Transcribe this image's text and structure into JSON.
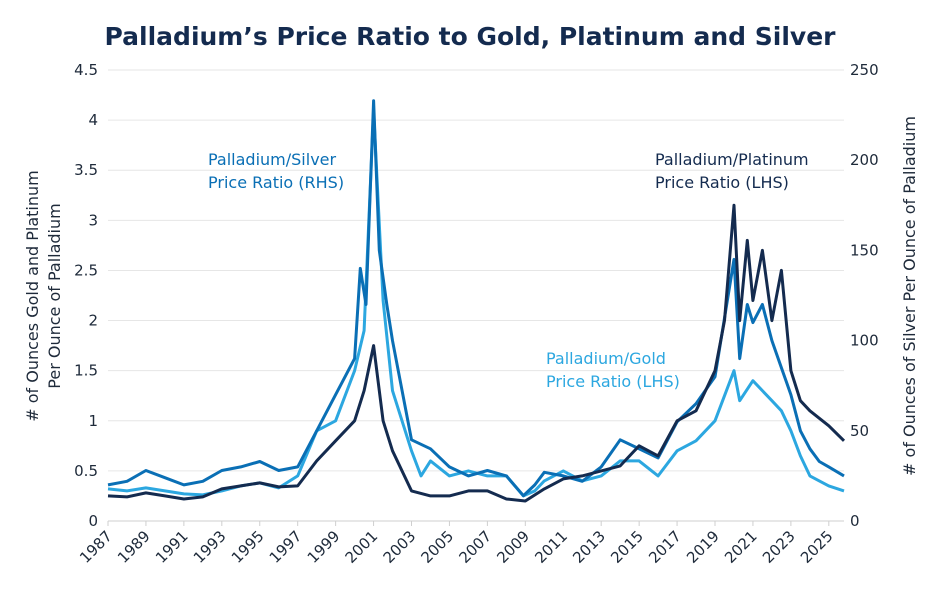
{
  "chart_data": {
    "type": "line",
    "title": "Palladium’s Price Ratio to Gold, Platinum and Silver",
    "ylabel_left": [
      "# of Ounces Gold and Platinum",
      "Per Ounce of Palladium"
    ],
    "ylabel_right": "# of Ounces of Silver Per Ounce of Palladium",
    "ylim_left": [
      0,
      4.5
    ],
    "ylim_right": [
      0,
      250
    ],
    "yticks_left": [
      "0",
      "0.5",
      "1",
      "1.5",
      "2",
      "2.5",
      "3",
      "3.5",
      "4",
      "4.5"
    ],
    "yticks_right": [
      "0",
      "50",
      "100",
      "150",
      "200",
      "250"
    ],
    "xticks": [
      "1987",
      "1989",
      "1991",
      "1993",
      "1995",
      "1997",
      "1999",
      "2001",
      "2003",
      "2005",
      "2007",
      "2009",
      "2011",
      "2013",
      "2015",
      "2017",
      "2019",
      "2021",
      "2023",
      "2025"
    ],
    "xlim": [
      1987,
      2025.8
    ],
    "grid": true,
    "series": [
      {
        "name": "Palladium/Silver Price Ratio (RHS)",
        "axis": "right",
        "color": "#0a6fb5",
        "x": [
          1987,
          1988,
          1989,
          1990,
          1991,
          1992,
          1993,
          1994,
          1995,
          1996,
          1997,
          1998,
          1999,
          2000,
          2000.3,
          2000.6,
          2001,
          2001.3,
          2001.7,
          2002,
          2003,
          2004,
          2005,
          2006,
          2007,
          2008,
          2008.9,
          2009.5,
          2010,
          2011,
          2012,
          2013,
          2014,
          2015,
          2016,
          2017,
          2018,
          2019,
          2020,
          2020.3,
          2020.7,
          2021,
          2021.5,
          2022,
          2022.5,
          2023,
          2023.5,
          2024,
          2024.5,
          2025,
          2025.8
        ],
        "y": [
          20,
          22,
          28,
          24,
          20,
          22,
          28,
          30,
          33,
          28,
          30,
          50,
          70,
          90,
          140,
          120,
          233,
          150,
          120,
          100,
          45,
          40,
          30,
          25,
          28,
          25,
          14,
          20,
          27,
          25,
          22,
          30,
          45,
          40,
          35,
          55,
          65,
          80,
          145,
          90,
          120,
          110,
          120,
          100,
          85,
          70,
          50,
          40,
          33,
          30,
          25
        ]
      },
      {
        "name": "Palladium/Platinum Price Ratio (LHS)",
        "axis": "left",
        "color": "#142b4f",
        "x": [
          1987,
          1988,
          1989,
          1990,
          1991,
          1992,
          1993,
          1994,
          1995,
          1996,
          1997,
          1998,
          1999,
          2000,
          2000.5,
          2001,
          2001.5,
          2002,
          2003,
          2004,
          2005,
          2006,
          2007,
          2008,
          2009,
          2010,
          2011,
          2012,
          2013,
          2014,
          2015,
          2016,
          2017,
          2018,
          2019,
          2019.5,
          2020,
          2020.3,
          2020.7,
          2021,
          2021.5,
          2022,
          2022.5,
          2023,
          2023.5,
          2024,
          2025,
          2025.8
        ],
        "y": [
          0.25,
          0.24,
          0.28,
          0.25,
          0.22,
          0.24,
          0.32,
          0.35,
          0.38,
          0.34,
          0.35,
          0.6,
          0.8,
          1.0,
          1.3,
          1.75,
          1.0,
          0.7,
          0.3,
          0.25,
          0.25,
          0.3,
          0.3,
          0.22,
          0.2,
          0.32,
          0.42,
          0.45,
          0.5,
          0.55,
          0.75,
          0.65,
          1.0,
          1.1,
          1.5,
          2.0,
          3.15,
          2.0,
          2.8,
          2.2,
          2.7,
          2.0,
          2.5,
          1.5,
          1.2,
          1.1,
          0.95,
          0.8
        ]
      },
      {
        "name": "Palladium/Gold Price Ratio (LHS)",
        "axis": "left",
        "color": "#2ca7e0",
        "x": [
          1987,
          1988,
          1989,
          1990,
          1991,
          1992,
          1993,
          1994,
          1995,
          1996,
          1997,
          1998,
          1999,
          2000,
          2000.5,
          2001,
          2001.5,
          2002,
          2003,
          2003.5,
          2004,
          2005,
          2006,
          2007,
          2008,
          2008.9,
          2009.5,
          2010,
          2011,
          2012,
          2013,
          2014,
          2015,
          2016,
          2017,
          2018,
          2019,
          2020,
          2020.3,
          2021,
          2022,
          2022.5,
          2023,
          2023.5,
          2024,
          2024.5,
          2025,
          2025.8
        ],
        "y": [
          0.32,
          0.3,
          0.33,
          0.3,
          0.27,
          0.26,
          0.3,
          0.35,
          0.38,
          0.33,
          0.45,
          0.9,
          1.0,
          1.5,
          1.9,
          4.1,
          2.2,
          1.3,
          0.7,
          0.45,
          0.6,
          0.45,
          0.5,
          0.45,
          0.45,
          0.25,
          0.3,
          0.4,
          0.5,
          0.4,
          0.45,
          0.6,
          0.6,
          0.45,
          0.7,
          0.8,
          1.0,
          1.5,
          1.2,
          1.4,
          1.2,
          1.1,
          0.9,
          0.65,
          0.45,
          0.4,
          0.35,
          0.3
        ]
      }
    ],
    "annotations": [
      {
        "lines": [
          "Palladium/Silver",
          "Price Ratio (RHS)"
        ],
        "color": "#0a6fb5"
      },
      {
        "lines": [
          "Palladium/Platinum",
          "Price Ratio (LHS)"
        ],
        "color": "#142b4f"
      },
      {
        "lines": [
          "Palladium/Gold",
          "Price Ratio (LHS)"
        ],
        "color": "#2ca7e0"
      }
    ]
  }
}
